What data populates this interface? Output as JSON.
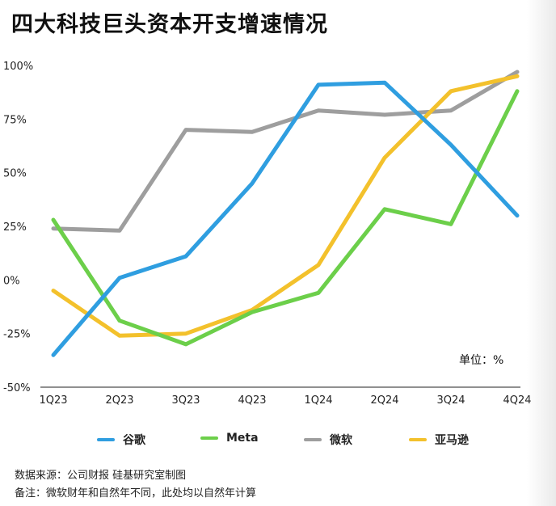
{
  "header": {
    "title": "四大科技巨头资本开支增速情况"
  },
  "unit_label": "单位：%",
  "chart_data": {
    "type": "line",
    "title": "四大科技巨头资本开支增速情况",
    "categories": [
      "1Q23",
      "2Q23",
      "3Q23",
      "4Q23",
      "1Q24",
      "2Q24",
      "3Q24",
      "4Q24"
    ],
    "ylim": [
      -50,
      100
    ],
    "yticks": [
      100,
      75,
      50,
      25,
      0,
      -25,
      -50
    ],
    "ytick_labels": [
      "100%",
      "75%",
      "50%",
      "25%",
      "0%",
      "-25%",
      "-50%"
    ],
    "xlabel": "",
    "ylabel": "",
    "grid": false,
    "legend_position": "bottom",
    "series": [
      {
        "name": "谷歌",
        "color": "#2f9ee0",
        "values": [
          -35,
          1,
          11,
          45,
          91,
          92,
          63,
          30
        ]
      },
      {
        "name": "Meta",
        "color": "#6ccf4a",
        "values": [
          28,
          -19,
          -30,
          -15,
          -6,
          33,
          26,
          88
        ]
      },
      {
        "name": "微软",
        "color": "#9e9e9e",
        "values": [
          24,
          23,
          70,
          69,
          79,
          77,
          79,
          97
        ]
      },
      {
        "name": "亚马逊",
        "color": "#f3c12c",
        "values": [
          -5,
          -26,
          -25,
          -14,
          7,
          57,
          88,
          95
        ]
      }
    ]
  },
  "footer": {
    "source": "数据来源：公司财报  硅基研究室制图",
    "note": "备注：微软财年和自然年不同，此处均以自然年计算"
  }
}
